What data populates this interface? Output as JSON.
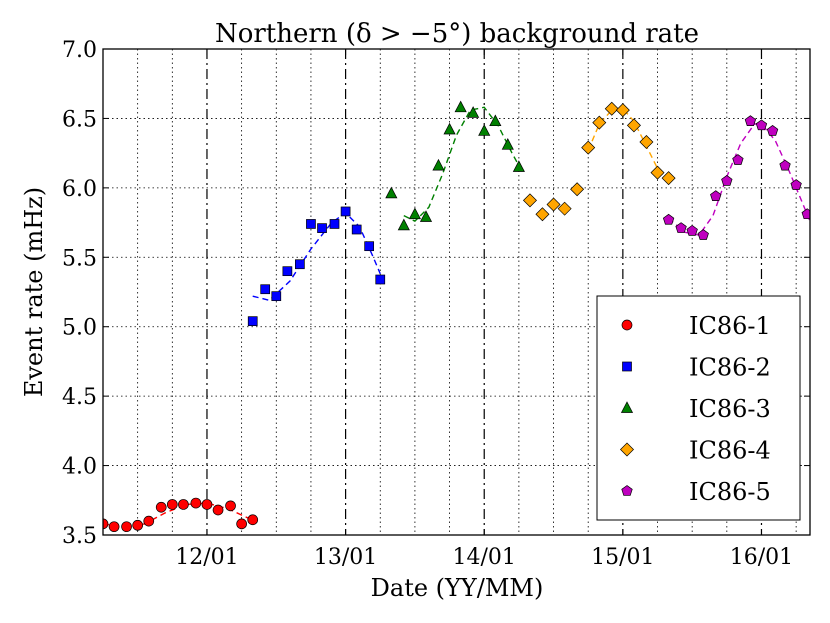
{
  "chart_data": {
    "type": "scatter",
    "title": "Northern (δ > −5°) background rate",
    "xlabel": "Date (YY/MM)",
    "ylabel": "Event rate (mHz)",
    "xlim": [
      2011.25,
      2016.35
    ],
    "ylim": [
      3.5,
      7.0
    ],
    "grid": true,
    "legend_position": "lower-right",
    "yticks": [
      3.5,
      4.0,
      4.5,
      5.0,
      5.5,
      6.0,
      6.5,
      7.0
    ],
    "ytick_labels": [
      "3.5",
      "4.0",
      "4.5",
      "5.0",
      "5.5",
      "6.0",
      "6.5",
      "7.0"
    ],
    "xticks": [
      2012,
      2013,
      2014,
      2015,
      2016
    ],
    "xtick_labels": [
      "12/01",
      "13/01",
      "14/01",
      "15/01",
      "16/01"
    ],
    "series": [
      {
        "name": "IC86-1",
        "color": "#ff0000",
        "marker": "circle",
        "x": [
          2011.25,
          2011.33,
          2011.42,
          2011.5,
          2011.58,
          2011.67,
          2011.75,
          2011.83,
          2011.92,
          2012.0,
          2012.08,
          2012.17,
          2012.25,
          2012.33
        ],
        "values": [
          3.58,
          3.56,
          3.56,
          3.57,
          3.6,
          3.7,
          3.72,
          3.72,
          3.73,
          3.72,
          3.68,
          3.71,
          3.58,
          3.61
        ],
        "fit": {
          "x": [
            2011.25,
            2011.4,
            2011.55,
            2011.7,
            2011.85,
            2012.0,
            2012.15,
            2012.3,
            2012.35
          ],
          "y": [
            3.58,
            3.56,
            3.58,
            3.66,
            3.72,
            3.73,
            3.69,
            3.62,
            3.6
          ]
        }
      },
      {
        "name": "IC86-2",
        "color": "#0000ff",
        "marker": "square",
        "x": [
          2012.33,
          2012.42,
          2012.5,
          2012.58,
          2012.67,
          2012.75,
          2012.83,
          2012.92,
          2013.0,
          2013.08,
          2013.17,
          2013.25
        ],
        "values": [
          5.04,
          5.27,
          5.22,
          5.4,
          5.45,
          5.74,
          5.71,
          5.74,
          5.83,
          5.7,
          5.58,
          5.34
        ],
        "fit": {
          "x": [
            2012.33,
            2012.45,
            2012.6,
            2012.75,
            2012.9,
            2013.0,
            2013.1,
            2013.2,
            2013.25
          ],
          "y": [
            5.22,
            5.19,
            5.33,
            5.56,
            5.75,
            5.82,
            5.72,
            5.5,
            5.38
          ]
        }
      },
      {
        "name": "IC86-3",
        "color": "#008000",
        "marker": "triangle",
        "x": [
          2013.33,
          2013.42,
          2013.5,
          2013.58,
          2013.67,
          2013.75,
          2013.83,
          2013.92,
          2014.0,
          2014.08,
          2014.17,
          2014.25
        ],
        "values": [
          5.96,
          5.73,
          5.81,
          5.79,
          6.16,
          6.42,
          6.58,
          6.54,
          6.41,
          6.48,
          6.31,
          6.15
        ],
        "fit": {
          "x": [
            2013.42,
            2013.5,
            2013.6,
            2013.7,
            2013.8,
            2013.9,
            2014.0,
            2014.1,
            2014.2,
            2014.25
          ],
          "y": [
            5.8,
            5.76,
            5.86,
            6.1,
            6.38,
            6.56,
            6.58,
            6.45,
            6.25,
            6.16
          ]
        }
      },
      {
        "name": "IC86-4",
        "color": "#ffa500",
        "marker": "diamond",
        "x": [
          2014.33,
          2014.42,
          2014.5,
          2014.58,
          2014.67,
          2014.75,
          2014.83,
          2014.92,
          2015.0,
          2015.08,
          2015.17,
          2015.25,
          2015.33
        ],
        "values": [
          5.91,
          5.81,
          5.88,
          5.85,
          5.99,
          6.29,
          6.47,
          6.57,
          6.56,
          6.45,
          6.33,
          6.11,
          6.07
        ],
        "fit": {
          "x": [
            2014.75,
            2014.83,
            2014.92,
            2015.0,
            2015.08,
            2015.17,
            2015.25,
            2015.33
          ],
          "y": [
            6.27,
            6.46,
            6.56,
            6.57,
            6.48,
            6.3,
            6.14,
            6.05
          ]
        }
      },
      {
        "name": "IC86-5",
        "color": "#bf00bf",
        "marker": "pentagon",
        "x": [
          2015.33,
          2015.42,
          2015.5,
          2015.58,
          2015.67,
          2015.75,
          2015.83,
          2015.92,
          2016.0,
          2016.08,
          2016.17,
          2016.25,
          2016.33
        ],
        "values": [
          5.77,
          5.71,
          5.69,
          5.66,
          5.94,
          6.05,
          6.2,
          6.48,
          6.45,
          6.41,
          6.16,
          6.02,
          5.81
        ],
        "fit": {
          "x": [
            2015.33,
            2015.45,
            2015.55,
            2015.65,
            2015.75,
            2015.85,
            2015.95,
            2016.0,
            2016.1,
            2016.2,
            2016.3,
            2016.35
          ],
          "y": [
            5.78,
            5.68,
            5.66,
            5.8,
            6.08,
            6.32,
            6.46,
            6.46,
            6.34,
            6.12,
            5.88,
            5.76
          ]
        }
      }
    ]
  }
}
